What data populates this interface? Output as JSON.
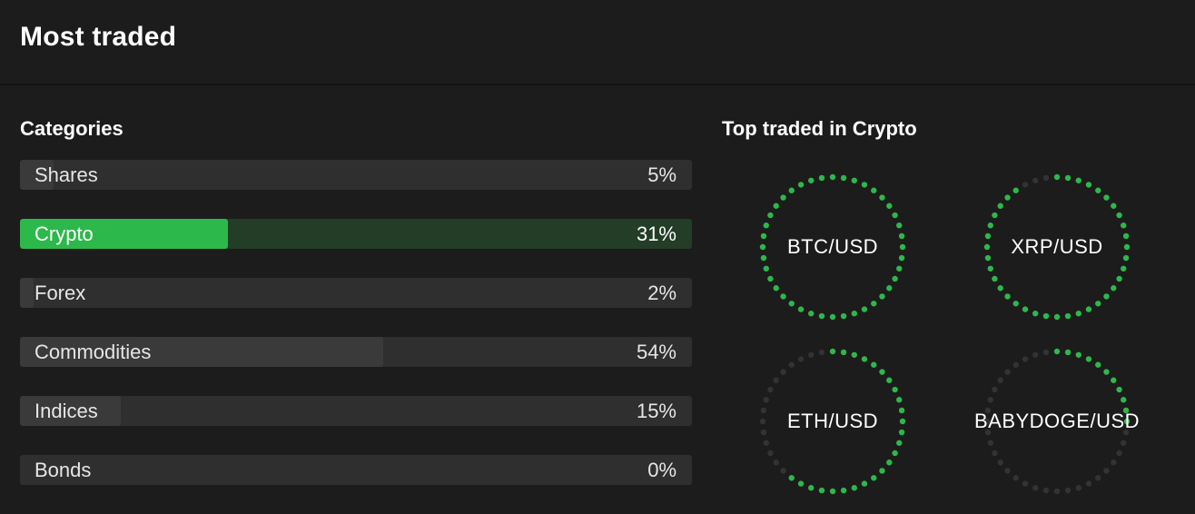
{
  "header": {
    "title": "Most traded"
  },
  "categories": {
    "title": "Categories",
    "items": [
      {
        "label": "Shares",
        "percent_text": "5%",
        "share": 0.05,
        "selected": false
      },
      {
        "label": "Crypto",
        "percent_text": "31%",
        "share": 0.31,
        "selected": true
      },
      {
        "label": "Forex",
        "percent_text": "2%",
        "share": 0.02,
        "selected": false
      },
      {
        "label": "Commodities",
        "percent_text": "54%",
        "share": 0.54,
        "selected": false
      },
      {
        "label": "Indices",
        "percent_text": "15%",
        "share": 0.15,
        "selected": false
      },
      {
        "label": "Bonds",
        "percent_text": "0%",
        "share": 0.0,
        "selected": false
      }
    ]
  },
  "top_traded": {
    "title": "Top traded in Crypto",
    "pairs": [
      {
        "label": "BTC/USD",
        "fill_fraction": 1.0
      },
      {
        "label": "XRP/USD",
        "fill_fraction": 0.93
      },
      {
        "label": "ETH/USD",
        "fill_fraction": 0.62
      },
      {
        "label": "BABYDOGE/USD",
        "line1": "BABYDOG",
        "line2": "E/USD",
        "fill_fraction": 0.28
      }
    ]
  },
  "colors": {
    "accent_green": "#2db84b",
    "dot_inactive": "#333333",
    "bar_track": "#2f2f2f",
    "bar_fill": "#3a3a3a",
    "background": "#1c1c1c"
  }
}
